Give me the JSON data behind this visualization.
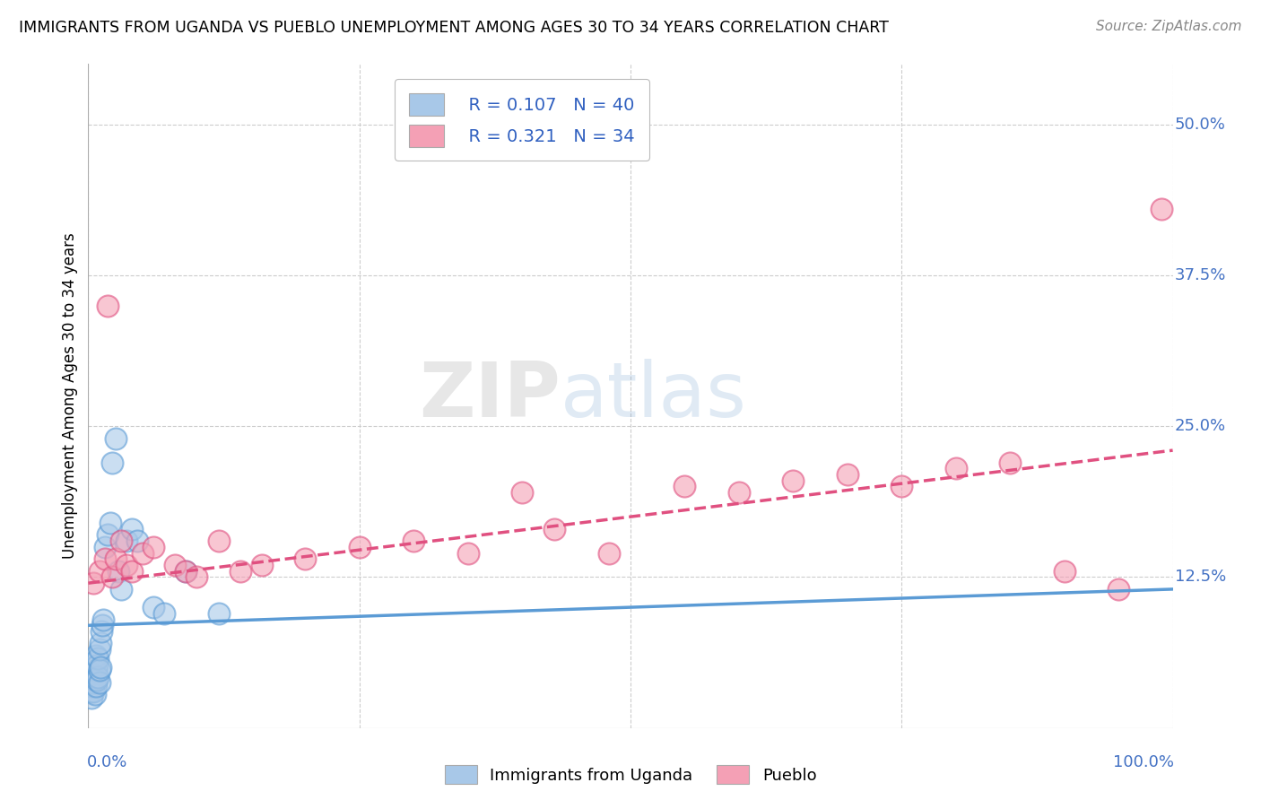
{
  "title": "IMMIGRANTS FROM UGANDA VS PUEBLO UNEMPLOYMENT AMONG AGES 30 TO 34 YEARS CORRELATION CHART",
  "source": "Source: ZipAtlas.com",
  "xlabel_bottom": [
    "Immigrants from Uganda",
    "Pueblo"
  ],
  "ylabel": "Unemployment Among Ages 30 to 34 years",
  "xlim": [
    0.0,
    1.0
  ],
  "ylim": [
    0.0,
    0.55
  ],
  "y_ticks": [
    0.125,
    0.25,
    0.375,
    0.5
  ],
  "y_tick_labels": [
    "12.5%",
    "25.0%",
    "37.5%",
    "50.0%"
  ],
  "legend_R1": "R = 0.107",
  "legend_N1": "N = 40",
  "legend_R2": "R = 0.321",
  "legend_N2": "N = 34",
  "color_blue": "#a8c8e8",
  "color_pink": "#f4a0b5",
  "line_blue": "#5b9bd5",
  "line_pink": "#e05080",
  "legend_text_color": "#3060c0",
  "watermark_zip": "ZIP",
  "watermark_atlas": "atlas",
  "blue_scatter_x": [
    0.002,
    0.003,
    0.003,
    0.004,
    0.004,
    0.005,
    0.005,
    0.005,
    0.006,
    0.006,
    0.006,
    0.007,
    0.007,
    0.007,
    0.008,
    0.008,
    0.009,
    0.009,
    0.01,
    0.01,
    0.01,
    0.011,
    0.011,
    0.012,
    0.013,
    0.014,
    0.015,
    0.018,
    0.02,
    0.022,
    0.025,
    0.028,
    0.03,
    0.035,
    0.04,
    0.045,
    0.06,
    0.07,
    0.09,
    0.12
  ],
  "blue_scatter_y": [
    0.03,
    0.025,
    0.04,
    0.035,
    0.045,
    0.03,
    0.038,
    0.05,
    0.028,
    0.04,
    0.055,
    0.035,
    0.048,
    0.06,
    0.04,
    0.052,
    0.042,
    0.058,
    0.038,
    0.048,
    0.065,
    0.05,
    0.07,
    0.08,
    0.085,
    0.09,
    0.15,
    0.16,
    0.17,
    0.22,
    0.24,
    0.13,
    0.115,
    0.155,
    0.165,
    0.155,
    0.1,
    0.095,
    0.13,
    0.095
  ],
  "pink_scatter_x": [
    0.005,
    0.01,
    0.015,
    0.018,
    0.022,
    0.025,
    0.03,
    0.035,
    0.04,
    0.05,
    0.06,
    0.08,
    0.09,
    0.1,
    0.12,
    0.14,
    0.16,
    0.2,
    0.25,
    0.3,
    0.35,
    0.4,
    0.43,
    0.48,
    0.55,
    0.6,
    0.65,
    0.7,
    0.75,
    0.8,
    0.85,
    0.9,
    0.95,
    0.99
  ],
  "pink_scatter_y": [
    0.12,
    0.13,
    0.14,
    0.35,
    0.125,
    0.14,
    0.155,
    0.135,
    0.13,
    0.145,
    0.15,
    0.135,
    0.13,
    0.125,
    0.155,
    0.13,
    0.135,
    0.14,
    0.15,
    0.155,
    0.145,
    0.195,
    0.165,
    0.145,
    0.2,
    0.195,
    0.205,
    0.21,
    0.2,
    0.215,
    0.22,
    0.13,
    0.115,
    0.43
  ],
  "blue_line_x0": 0.0,
  "blue_line_y0": 0.085,
  "blue_line_x1": 1.0,
  "blue_line_y1": 0.115,
  "pink_line_x0": 0.0,
  "pink_line_y0": 0.12,
  "pink_line_x1": 1.0,
  "pink_line_y1": 0.23
}
